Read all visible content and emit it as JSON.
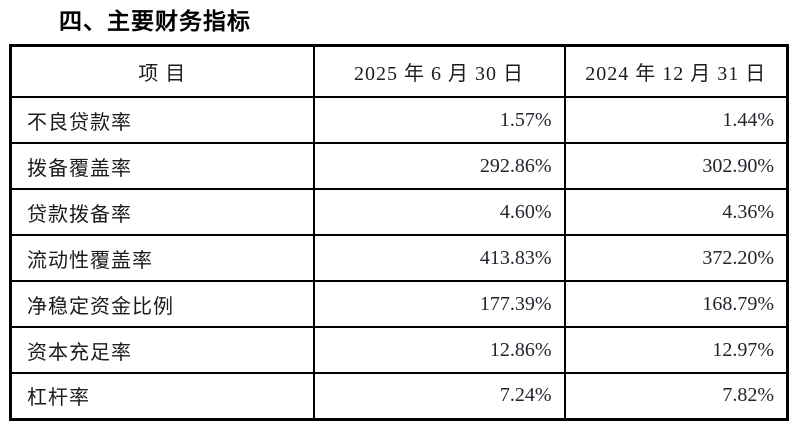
{
  "page": {
    "title": "四、主要财务指标"
  },
  "table": {
    "columns": {
      "item": "项  目",
      "date_2025": "2025 年 6 月 30 日",
      "date_2024": "2024 年 12 月 31 日"
    },
    "rows": [
      {
        "label": "不良贷款率",
        "v2025": "1.57%",
        "v2024": "1.44%"
      },
      {
        "label": "拨备覆盖率",
        "v2025": "292.86%",
        "v2024": "302.90%"
      },
      {
        "label": "贷款拨备率",
        "v2025": "4.60%",
        "v2024": "4.36%"
      },
      {
        "label": "流动性覆盖率",
        "v2025": "413.83%",
        "v2024": "372.20%"
      },
      {
        "label": "净稳定资金比例",
        "v2025": "177.39%",
        "v2024": "168.79%"
      },
      {
        "label": "资本充足率",
        "v2025": "12.86%",
        "v2024": "12.97%"
      },
      {
        "label": "杠杆率",
        "v2025": "7.24%",
        "v2024": "7.82%"
      }
    ]
  },
  "colors": {
    "border": "#000000",
    "text": "#1c1c1c",
    "background": "#ffffff"
  }
}
